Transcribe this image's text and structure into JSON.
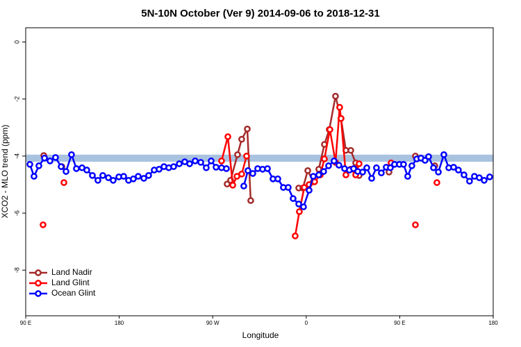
{
  "chart_data": {
    "type": "line",
    "title": "5N-10N October (Ver 9)   2014-09-06 to 2018-12-31",
    "x_label": "Longitude",
    "y_label": "XCO2 - MLO trend (ppm)",
    "xlim": [
      90,
      540
    ],
    "xticks": [
      {
        "value": 90,
        "label": "90 E"
      },
      {
        "value": 180,
        "label": "180"
      },
      {
        "value": 270,
        "label": "90 W"
      },
      {
        "value": 360,
        "label": "0"
      },
      {
        "value": 450,
        "label": "90 E"
      },
      {
        "value": 540,
        "label": "180"
      }
    ],
    "ylim": [
      -9.6,
      0.5
    ],
    "yticks": [
      0,
      -2,
      -4,
      -6,
      -8
    ],
    "band": [
      -4.2,
      -3.95
    ],
    "band_color": "#a9c2e0",
    "legend": "bottom-left",
    "series": [
      {
        "name": "Land Nadir",
        "color": "#a52a2a",
        "x": [
          107.4,
          null,
          124.8,
          null,
          283.9,
          287.2,
          293.9,
          297.9,
          303.3,
          306.6,
          null,
          352.8,
          356.8,
          361.5,
          366.8,
          372.1,
          377.5,
          382.2,
          388.2,
          393.5,
          398.2,
          402.9,
          407.6,
          410.9,
          null,
          439.7,
          null,
          465.1,
          null,
          483.8
        ],
        "values": [
          -3.98,
          null,
          -4.37,
          null,
          -4.98,
          -4.85,
          -3.95,
          -3.41,
          -3.05,
          -5.56,
          null,
          -5.12,
          -5.12,
          -4.51,
          -4.9,
          -4.46,
          -3.59,
          -3.07,
          -1.9,
          -2.68,
          -3.8,
          -3.8,
          -4.24,
          -4.68,
          null,
          -4.56,
          null,
          -4.0,
          null,
          -4.34
        ]
      },
      {
        "name": "Land Glint",
        "color": "#ff0000",
        "x": [
          106.7,
          null,
          126.8,
          null,
          278.5,
          284.6,
          289.3,
          293.3,
          297.9,
          302.6,
          null,
          349.4,
          353.4,
          358.1,
          362.8,
          368.1,
          373.5,
          377.5,
          382.8,
          388.2,
          392.2,
          393.5,
          398.2,
          402.9,
          407.6,
          410.9,
          null,
          441.7,
          null,
          465.1,
          null,
          485.8
        ],
        "values": [
          -6.41,
          null,
          -4.93,
          null,
          -4.17,
          -3.32,
          -5.02,
          -4.71,
          -4.63,
          -4.0,
          null,
          -6.8,
          -5.95,
          -5.1,
          -5.0,
          -4.9,
          -4.66,
          -4.1,
          -3.07,
          -4.22,
          -2.29,
          -2.68,
          -4.66,
          -4.46,
          -4.66,
          -4.27,
          null,
          -4.24,
          null,
          -6.41,
          null,
          -4.93
        ]
      },
      {
        "name": "Ocean Glint",
        "color": "#0000ff",
        "x": [
          94.0,
          98.0,
          102.7,
          108.1,
          113.4,
          118.7,
          124.1,
          128.8,
          134.1,
          138.8,
          144.2,
          148.8,
          154.2,
          159.5,
          164.2,
          169.6,
          174.2,
          179.6,
          184.3,
          189.0,
          193.6,
          198.3,
          203.7,
          208.3,
          213.7,
          218.4,
          223.1,
          227.7,
          232.4,
          237.8,
          243.1,
          247.8,
          253.1,
          258.5,
          263.8,
          268.5,
          273.2,
          278.5,
          283.2,
          null,
          299.9,
          303.9,
          308.6,
          313.3,
          318.0,
          322.7,
          328.0,
          332.7,
          338.0,
          342.7,
          347.4,
          352.8,
          357.4,
          362.8,
          366.8,
          372.1,
          376.8,
          381.5,
          386.8,
          391.5,
          396.9,
          401.6,
          405.6,
          409.6,
          414.3,
          418.3,
          423.0,
          427.6,
          432.3,
          437.0,
          441.0,
          445.0,
          449.7,
          453.7,
          457.7,
          461.7,
          466.4,
          470.4,
          474.4,
          477.8,
          482.5,
          487.2,
          492.5,
          497.2,
          501.9,
          506.5,
          511.9,
          517.2,
          521.9,
          526.6,
          531.3,
          536.6
        ],
        "values": [
          -4.29,
          -4.71,
          -4.34,
          -4.07,
          -4.17,
          -4.05,
          -4.37,
          -4.54,
          -3.95,
          -4.44,
          -4.41,
          -4.49,
          -4.68,
          -4.85,
          -4.68,
          -4.76,
          -4.85,
          -4.73,
          -4.71,
          -4.85,
          -4.8,
          -4.71,
          -4.78,
          -4.68,
          -4.49,
          -4.46,
          -4.37,
          -4.41,
          -4.37,
          -4.27,
          -4.2,
          -4.27,
          -4.17,
          -4.22,
          -4.41,
          -4.17,
          -4.39,
          -4.41,
          -4.44,
          null,
          -5.05,
          -4.51,
          -4.61,
          -4.44,
          -4.46,
          -4.44,
          -4.8,
          -4.8,
          -5.1,
          -5.1,
          -5.49,
          -5.68,
          -5.78,
          -5.2,
          -4.71,
          -4.66,
          -4.54,
          -4.34,
          -4.17,
          -4.32,
          -4.44,
          -4.49,
          -4.44,
          -4.54,
          -4.56,
          -4.41,
          -4.78,
          -4.41,
          -4.59,
          -4.39,
          -4.41,
          -4.29,
          -4.29,
          -4.29,
          -4.71,
          -4.34,
          -4.1,
          -4.07,
          -4.15,
          -4.02,
          -4.41,
          -4.56,
          -3.95,
          -4.41,
          -4.39,
          -4.49,
          -4.66,
          -4.88,
          -4.71,
          -4.76,
          -4.85,
          -4.73
        ]
      }
    ]
  }
}
